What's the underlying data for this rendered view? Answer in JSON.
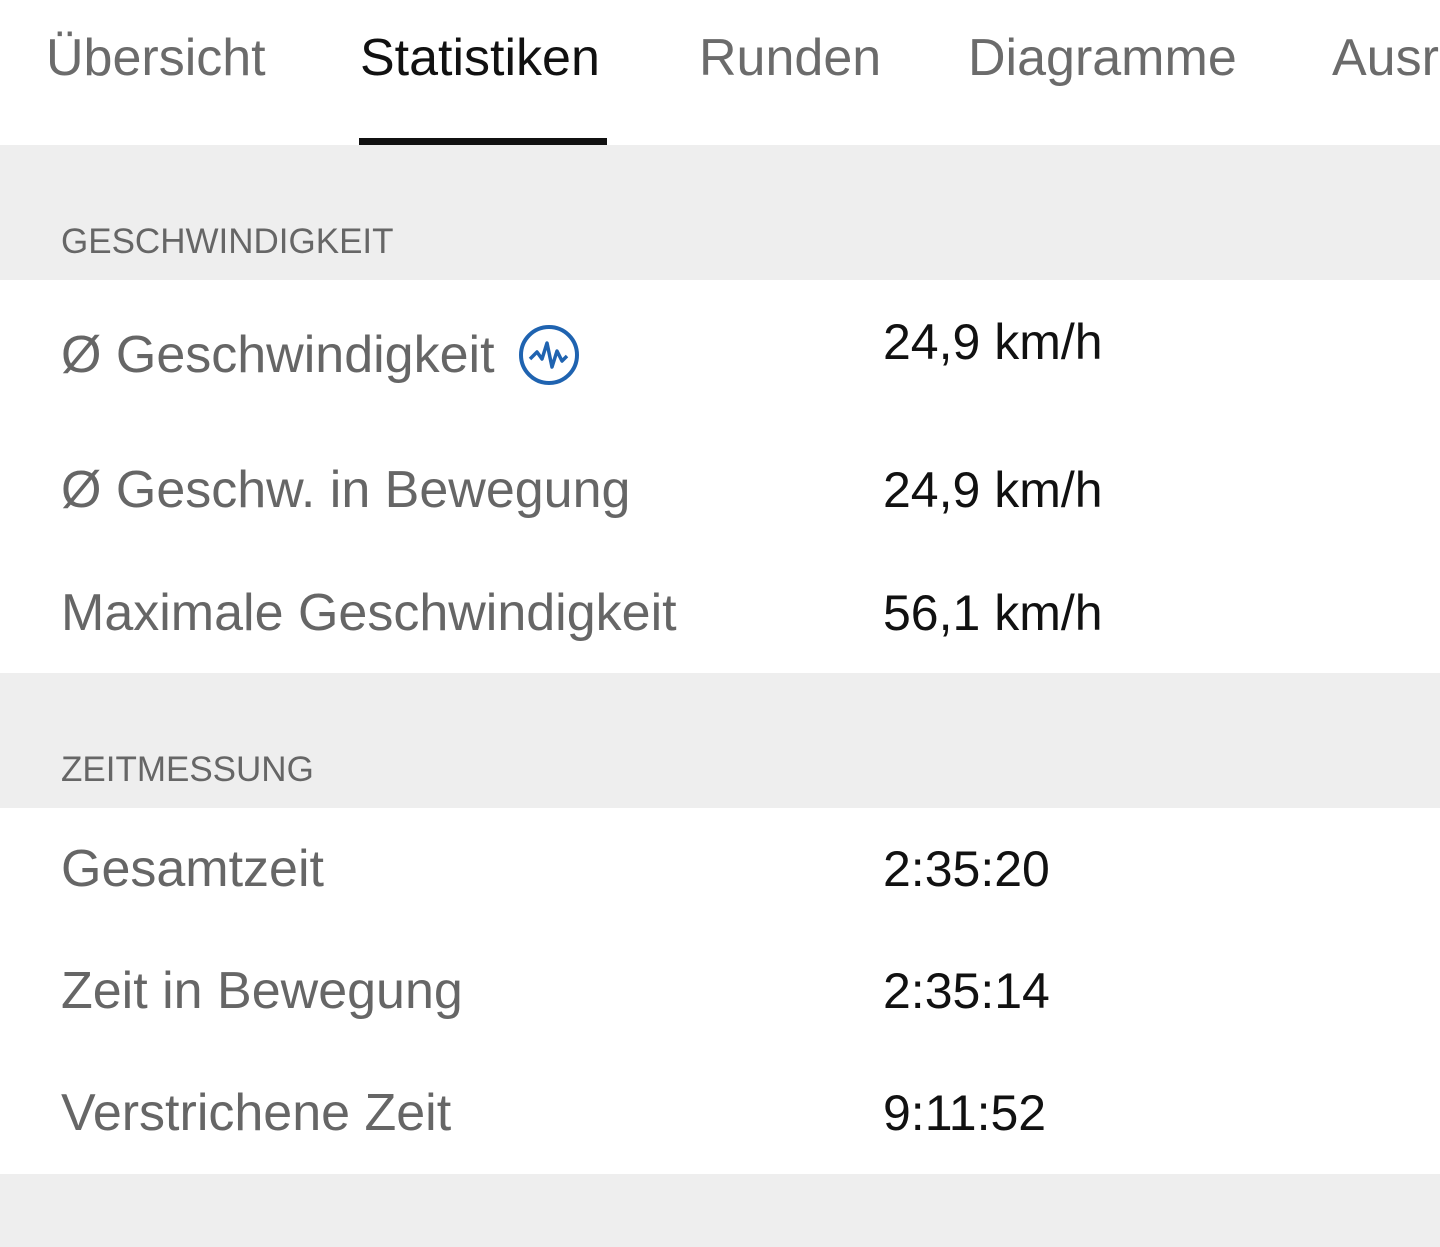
{
  "tabs": [
    {
      "label": "Übersicht"
    },
    {
      "label": "Statistiken",
      "active": true
    },
    {
      "label": "Runden"
    },
    {
      "label": "Diagramme"
    },
    {
      "label": "Ausr"
    }
  ],
  "sections": [
    {
      "title": "GESCHWINDIGKEIT",
      "rows": [
        {
          "label": "Ø Geschwindigkeit",
          "value": "24,9 km/h",
          "icon": "performance-pulse-icon"
        },
        {
          "label": "Ø Geschw. in Bewegung",
          "value": "24,9 km/h"
        },
        {
          "label": "Maximale Geschwindigkeit",
          "value": "56,1 km/h"
        }
      ]
    },
    {
      "title": "ZEITMESSUNG",
      "rows": [
        {
          "label": "Gesamtzeit",
          "value": "2:35:20"
        },
        {
          "label": "Zeit in Bewegung",
          "value": "2:35:14"
        },
        {
          "label": "Verstrichene Zeit",
          "value": "9:11:52"
        }
      ]
    }
  ],
  "colors": {
    "accent": "#1f63b0",
    "active_tab": "#111111",
    "inactive_tab": "#6b6b6b",
    "section_bg": "#eeeeee"
  }
}
